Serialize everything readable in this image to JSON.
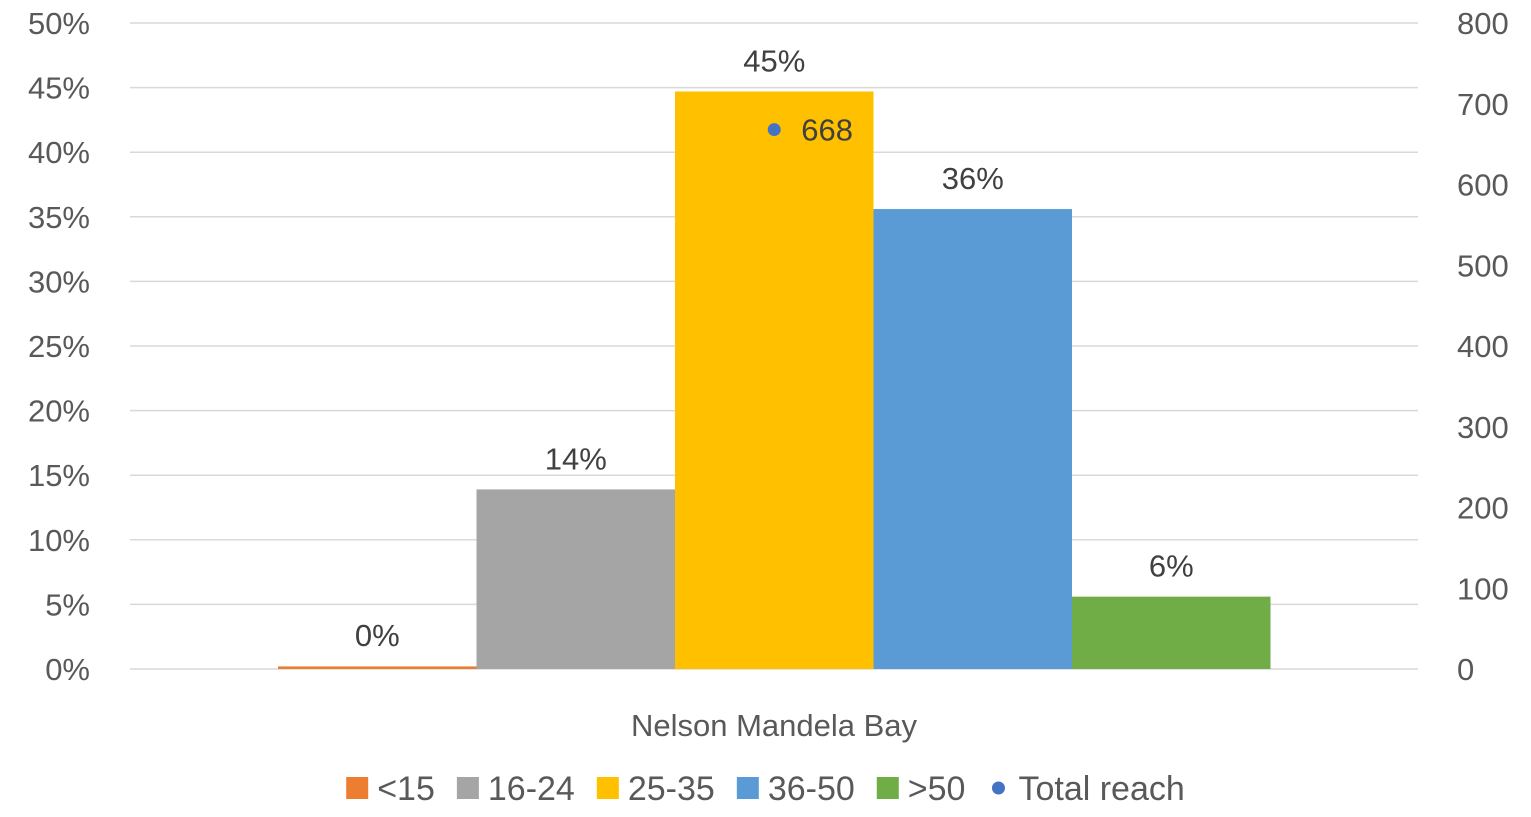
{
  "chart_data": {
    "type": "bar",
    "title": "",
    "xlabel": "",
    "ylabel": "",
    "categories": [
      "Nelson Mandela Bay"
    ],
    "series": [
      {
        "name": "<15",
        "values": [
          0.2
        ],
        "label": "0%",
        "color": "#ED7D31"
      },
      {
        "name": "16-24",
        "values": [
          13.9
        ],
        "label": "14%",
        "color": "#A5A5A5"
      },
      {
        "name": "25-35",
        "values": [
          44.7
        ],
        "label": "45%",
        "color": "#FFC000"
      },
      {
        "name": "36-50",
        "values": [
          35.6
        ],
        "label": "36%",
        "color": "#5B9BD5"
      },
      {
        "name": ">50",
        "values": [
          5.6
        ],
        "label": "6%",
        "color": "#70AD47"
      }
    ],
    "secondary_series": {
      "name": "Total reach",
      "type": "scatter",
      "values": [
        668
      ],
      "label": "668",
      "color": "#4472C4"
    },
    "y_axis": {
      "range": [
        0,
        50
      ],
      "ticks": [
        "0%",
        "5%",
        "10%",
        "15%",
        "20%",
        "25%",
        "30%",
        "35%",
        "40%",
        "45%",
        "50%"
      ]
    },
    "y2_axis": {
      "range": [
        0,
        800
      ],
      "ticks": [
        "0",
        "100",
        "200",
        "300",
        "400",
        "500",
        "600",
        "700",
        "800"
      ]
    },
    "grid": true,
    "legend_position": "bottom"
  }
}
